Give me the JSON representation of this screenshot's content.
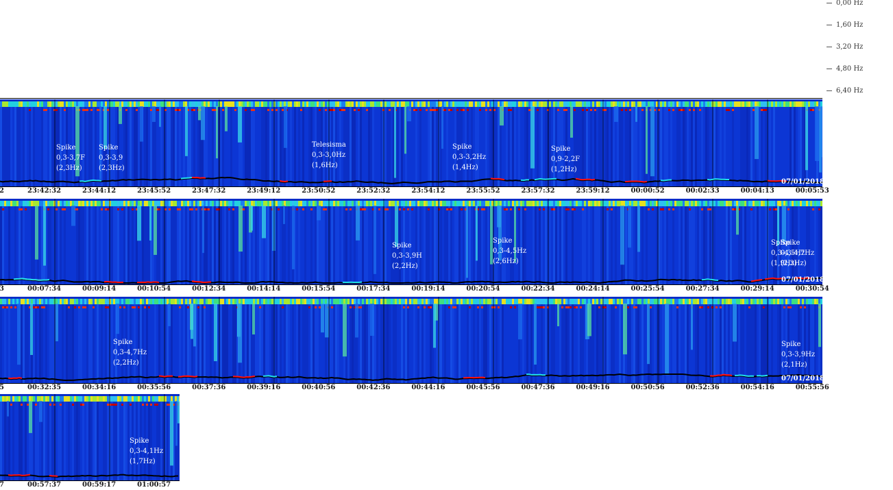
{
  "chart_data": {
    "type": "heatmap",
    "title": "",
    "frequency_scale": [
      "0,00 Hz",
      "1,60 Hz",
      "3,20 Hz",
      "4,80 Hz",
      "6,40 Hz"
    ],
    "strips": [
      {
        "time_labels": [
          "2",
          "23:42:32",
          "23:44:12",
          "23:45:52",
          "23:47:32",
          "23:49:12",
          "23:50:52",
          "23:52:32",
          "23:54:12",
          "23:55:52",
          "23:57:32",
          "23:59:12",
          "00:00:52",
          "00:02:33",
          "00:04:13",
          "00:05:53"
        ],
        "date": "07/01/2018",
        "annotations": [
          {
            "text": "Spike\n0,3-3,7F\n(2,3Hz)"
          },
          {
            "text": "Spike\n0,3-3,9\n(2,3Hz)"
          },
          {
            "text": "Telesisma\n0,3-3,0Hz\n(1,6Hz)"
          },
          {
            "text": "Spike\n0,3-3,2Hz\n(1,4Hz)"
          },
          {
            "text": "Spike\n0,9-2,2F\n(1,2Hz)"
          }
        ]
      },
      {
        "time_labels": [
          "3",
          "00:07:34",
          "00:09:14",
          "00:10:54",
          "00:12:34",
          "00:14:14",
          "00:15:54",
          "00:17:34",
          "00:19:14",
          "00:20:54",
          "00:22:34",
          "00:24:14",
          "00:25:54",
          "00:27:34",
          "00:29:14",
          "00:30:54"
        ],
        "date": "07/01/2018",
        "annotations": [
          {
            "text": "Spike\n0,3-3,9H\n(2,2Hz)"
          },
          {
            "text": "Spike\n0,3-4,5Hz\n(2,6Hz)"
          },
          {
            "text": "Spike\n0,3-4,5Hz\n(1,9Hz)"
          },
          {
            "text": "Spike\n0,3-4,7Hz\n(2,3Hz)"
          }
        ]
      },
      {
        "time_labels": [
          "5",
          "00:32:35",
          "00:34:16",
          "00:35:56",
          "00:37:36",
          "00:39:16",
          "00:40:56",
          "00:42:36",
          "00:44:16",
          "00:45:56",
          "00:47:36",
          "00:49:16",
          "00:50:56",
          "00:52:36",
          "00:54:16",
          "00:55:56"
        ],
        "date": "07/01/2018",
        "annotations": [
          {
            "text": "Spike\n0,3-4,7Hz\n(2,2Hz)"
          },
          {
            "text": "Spike\n0,3-3,9Hz\n(2,1Hz)"
          }
        ]
      },
      {
        "time_labels": [
          "7",
          "00:57:37",
          "00:59:17",
          "01:00:57"
        ],
        "date": "",
        "annotations": [
          {
            "text": "Spike\n0,3-4,1Hz\n(1,7Hz)"
          }
        ]
      }
    ]
  }
}
